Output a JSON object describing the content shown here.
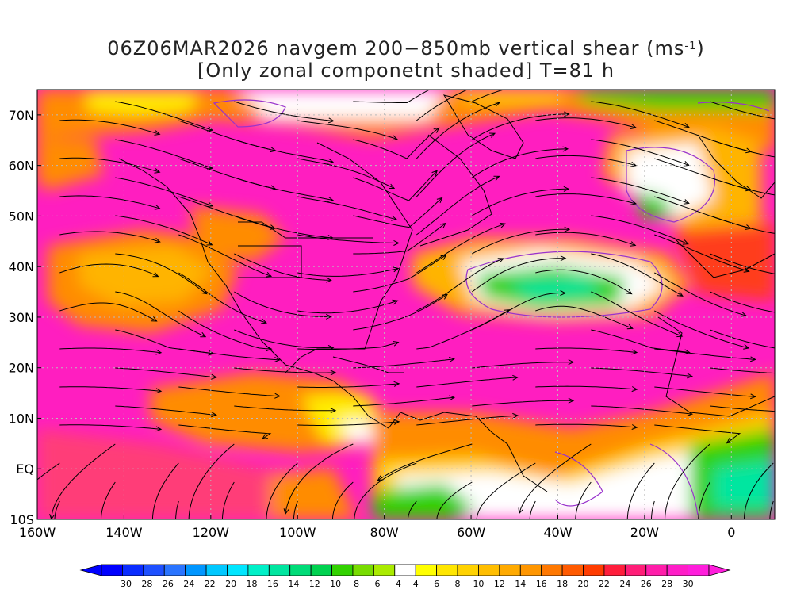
{
  "title": {
    "line1_prefix": "06Z06MAR2026 navgem 200−850mb vertical shear (ms",
    "line1_sup": "-1",
    "line1_suffix": ")",
    "line2": "[Only zonal componetnt shaded] T=81 h"
  },
  "axes": {
    "lat_labels": [
      "70N",
      "60N",
      "50N",
      "40N",
      "30N",
      "20N",
      "10N",
      "EQ",
      "10S"
    ],
    "lat_values": [
      70,
      60,
      50,
      40,
      30,
      20,
      10,
      0,
      -10
    ],
    "lon_labels": [
      "160W",
      "140W",
      "120W",
      "100W",
      "80W",
      "60W",
      "40W",
      "20W",
      "0"
    ],
    "lon_values": [
      -160,
      -140,
      -120,
      -100,
      -80,
      -60,
      -40,
      -20,
      0
    ],
    "lon_range": [
      -160,
      10
    ],
    "lat_range": [
      -10,
      75
    ],
    "grid": "dotted"
  },
  "colorbar": {
    "labels": [
      "−30",
      "−28",
      "−26",
      "−24",
      "−22",
      "−20",
      "−18",
      "−16",
      "−14",
      "−12",
      "−10",
      "−8",
      "−6",
      "−4",
      "4",
      "6",
      "8",
      "10",
      "12",
      "14",
      "16",
      "18",
      "20",
      "22",
      "24",
      "26",
      "28",
      "30"
    ],
    "colors": [
      "#0000ff",
      "#0a2cff",
      "#1e50ff",
      "#2a74ff",
      "#0096ff",
      "#00c8ff",
      "#00e6ff",
      "#00f0c8",
      "#00e6a0",
      "#00dc78",
      "#00d250",
      "#32d200",
      "#78dc00",
      "#aaeb00",
      "#ffffff",
      "#ffff00",
      "#ffe600",
      "#ffd200",
      "#ffbe00",
      "#ffaa00",
      "#ff9600",
      "#ff7800",
      "#ff5a00",
      "#ff3c00",
      "#ff1e3c",
      "#ff1e78",
      "#ff1eaa",
      "#ff1ec8",
      "#ff1edc"
    ],
    "left_arrow_color": "#0000ff",
    "right_arrow_color": "#ff1edc"
  },
  "palette": {
    "magenta": "#ff1ec0",
    "pink": "#ff3c78",
    "red": "#ff3c1e",
    "orange": "#ff8c00",
    "gold": "#ffb400",
    "yellow": "#ffff00",
    "green": "#32d200",
    "lime": "#aaeb00",
    "cyan": "#00e6a0",
    "coast": "#000000",
    "contour": "#9932cc"
  }
}
